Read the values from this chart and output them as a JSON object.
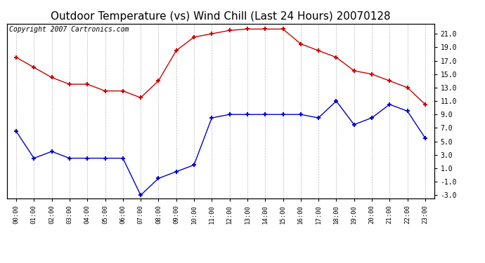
{
  "title": "Outdoor Temperature (vs) Wind Chill (Last 24 Hours) 20070128",
  "copyright_text": "Copyright 2007 Cartronics.com",
  "hours": [
    "00:00",
    "01:00",
    "02:00",
    "03:00",
    "04:00",
    "05:00",
    "06:00",
    "07:00",
    "08:00",
    "09:00",
    "10:00",
    "11:00",
    "12:00",
    "13:00",
    "14:00",
    "15:00",
    "16:00",
    "17:00",
    "18:00",
    "19:00",
    "20:00",
    "21:00",
    "22:00",
    "23:00"
  ],
  "outdoor_temp": [
    17.5,
    16.0,
    14.5,
    13.5,
    13.5,
    12.5,
    12.5,
    11.5,
    14.0,
    18.5,
    20.5,
    21.0,
    21.5,
    21.7,
    21.7,
    21.7,
    19.5,
    18.5,
    17.5,
    15.5,
    15.0,
    14.0,
    13.0,
    10.5
  ],
  "wind_chill": [
    6.5,
    2.5,
    3.5,
    2.5,
    2.5,
    2.5,
    2.5,
    -3.0,
    -0.5,
    0.5,
    1.5,
    8.5,
    9.0,
    9.0,
    9.0,
    9.0,
    9.0,
    8.5,
    11.0,
    7.5,
    8.5,
    10.5,
    9.5,
    5.5
  ],
  "temp_color": "#cc0000",
  "chill_color": "#0000cc",
  "bg_color": "#ffffff",
  "plot_bg_color": "#ffffff",
  "grid_color": "#bbbbbb",
  "ylim": [
    -3.5,
    22.5
  ],
  "yticks": [
    -3.0,
    -1.0,
    1.0,
    3.0,
    5.0,
    7.0,
    9.0,
    11.0,
    13.0,
    15.0,
    17.0,
    19.0,
    21.0
  ],
  "title_fontsize": 11,
  "copyright_fontsize": 7
}
